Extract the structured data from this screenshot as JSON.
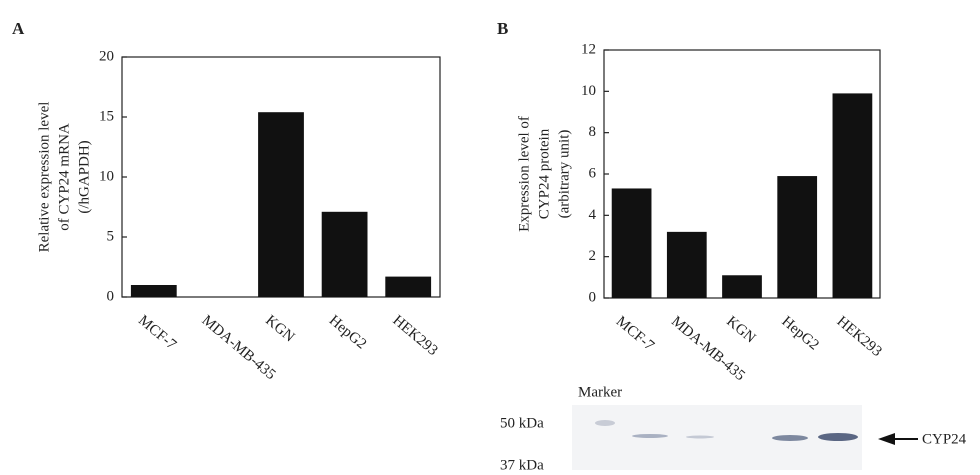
{
  "chart_data": [
    {
      "type": "bar",
      "panel_label": "A",
      "ylabel": [
        "Relative expression level",
        "of CYP24 mRNA",
        "(/hGAPDH)"
      ],
      "categories": [
        "MCF-7",
        "MDA-MB-435",
        "KGN",
        "HepG2",
        "HEK293"
      ],
      "values": [
        1.0,
        0,
        15.4,
        7.1,
        1.7
      ],
      "color": "#111111",
      "ylim": [
        0,
        20
      ],
      "yticks": [
        0,
        5,
        10,
        15,
        20
      ]
    },
    {
      "type": "bar",
      "panel_label": "B",
      "ylabel": [
        "Expression level of",
        "CYP24 protein",
        "(arbitrary unit)"
      ],
      "categories": [
        "MCF-7",
        "MDA-MB-435",
        "KGN",
        "HepG2",
        "HEK293"
      ],
      "values": [
        5.3,
        3.2,
        1.1,
        5.9,
        9.9
      ],
      "color": "#111111",
      "ylim": [
        0,
        12
      ],
      "yticks": [
        0,
        2,
        4,
        6,
        8,
        10,
        12
      ]
    }
  ],
  "blot": {
    "marker_label": "Marker",
    "size_labels": [
      "50 kDa",
      "37 kDa"
    ],
    "band_label": "CYP24"
  }
}
